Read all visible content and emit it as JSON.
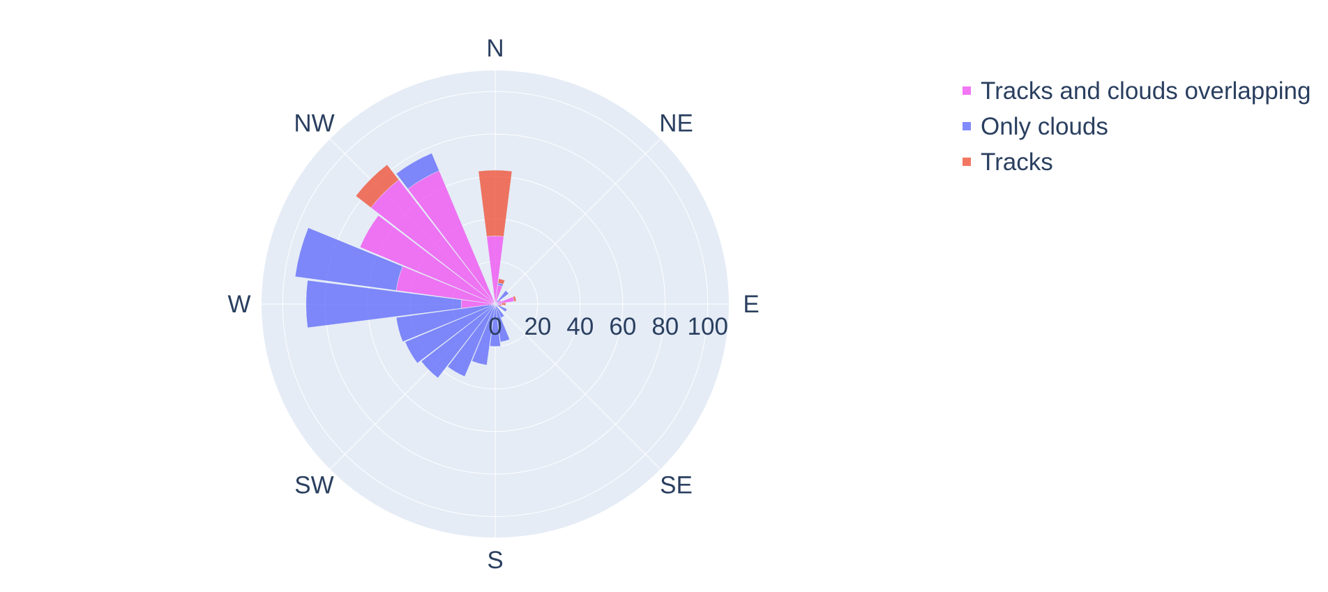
{
  "chart_data": {
    "type": "barpolar",
    "title": "",
    "angular_axis": {
      "direction": "clockwise",
      "rotation_deg": 90,
      "labels": [
        "N",
        "NE",
        "E",
        "SE",
        "S",
        "SW",
        "W",
        "NW"
      ]
    },
    "radial_axis": {
      "range": [
        0,
        105
      ],
      "tick_labels": [
        "0",
        "20",
        "40",
        "60",
        "80",
        "100"
      ],
      "tick_values": [
        0,
        20,
        40,
        60,
        80,
        100
      ]
    },
    "legend": {
      "placement": "top-right",
      "order": [
        "Tracks and clouds overlapping",
        "Only clouds",
        "Tracks"
      ]
    },
    "series": [
      {
        "name": "Tracks and clouds overlapping",
        "color": "#EF55F1",
        "bars": [
          {
            "theta": 0,
            "r": 32
          },
          {
            "theta": 15,
            "r": 9
          },
          {
            "theta": 30,
            "r": 2
          },
          {
            "theta": 60,
            "r": 3
          },
          {
            "theta": 75,
            "r": 9
          },
          {
            "theta": 90,
            "r": 3
          },
          {
            "theta": 105,
            "r": 2
          },
          {
            "theta": 195,
            "r": 2
          },
          {
            "theta": 255,
            "r": 2
          },
          {
            "theta": 270,
            "r": 16
          },
          {
            "theta": 285,
            "r": 47
          },
          {
            "theta": 300,
            "r": 69
          },
          {
            "theta": 315,
            "r": 74
          },
          {
            "theta": 330,
            "r": 68
          }
        ]
      },
      {
        "name": "Only clouds",
        "color": "#636EFA",
        "bars": [
          {
            "theta": 15,
            "r": 1
          },
          {
            "theta": 45,
            "r": 8
          },
          {
            "theta": 120,
            "r": 6
          },
          {
            "theta": 150,
            "r": 7
          },
          {
            "theta": 165,
            "r": 18
          },
          {
            "theta": 180,
            "r": 20
          },
          {
            "theta": 195,
            "r": 27
          },
          {
            "theta": 210,
            "r": 37
          },
          {
            "theta": 225,
            "r": 44
          },
          {
            "theta": 240,
            "r": 46
          },
          {
            "theta": 255,
            "r": 45
          },
          {
            "theta": 270,
            "r": 73
          },
          {
            "theta": 285,
            "r": 48
          },
          {
            "theta": 330,
            "r": 9
          }
        ]
      },
      {
        "name": "Tracks",
        "color": "#EF553B",
        "bars": [
          {
            "theta": 0,
            "r": 31
          },
          {
            "theta": 15,
            "r": 2
          },
          {
            "theta": 75,
            "r": 1
          },
          {
            "theta": 90,
            "r": 2
          },
          {
            "theta": 105,
            "r": 1
          },
          {
            "theta": 315,
            "r": 9
          }
        ]
      }
    ]
  }
}
